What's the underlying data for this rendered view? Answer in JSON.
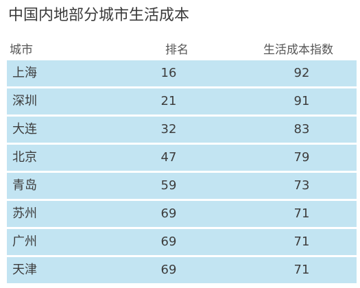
{
  "chart_data": {
    "type": "table",
    "title": "中国内地部分城市生活成本",
    "columns": [
      "城市",
      "排名",
      "生活成本指数"
    ],
    "rows": [
      {
        "city": "上海",
        "rank": 16,
        "index": 92
      },
      {
        "city": "深圳",
        "rank": 21,
        "index": 91
      },
      {
        "city": "大连",
        "rank": 32,
        "index": 83
      },
      {
        "city": "北京",
        "rank": 47,
        "index": 79
      },
      {
        "city": "青岛",
        "rank": 59,
        "index": 73
      },
      {
        "city": "苏州",
        "rank": 69,
        "index": 71
      },
      {
        "city": "广州",
        "rank": 69,
        "index": 71
      },
      {
        "city": "天津",
        "rank": 69,
        "index": 71
      }
    ],
    "row_color": "#c2e4f2"
  }
}
